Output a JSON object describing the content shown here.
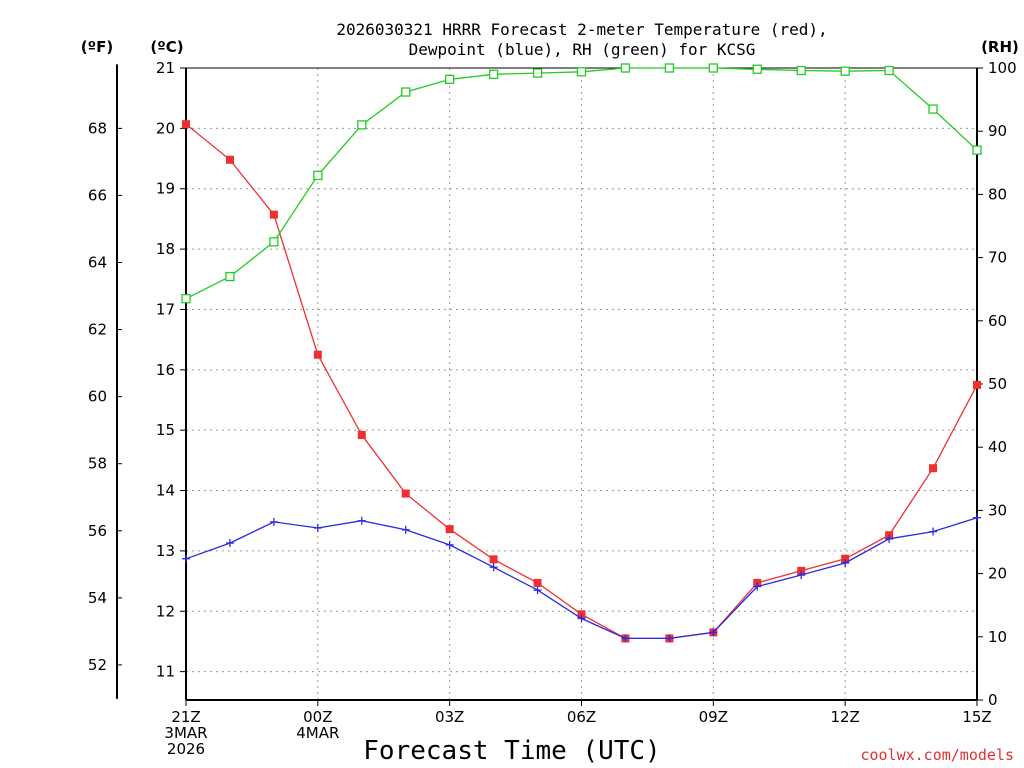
{
  "chart_data": {
    "type": "line",
    "title_line1": "2026030321 HRRR Forecast 2-meter Temperature (red),",
    "title_line2": "Dewpoint (blue), RH (green) for KCSG",
    "xlabel": "Forecast Time (UTC)",
    "watermark": "coolwx.com/models",
    "unit_labels": {
      "fahrenheit": "(ºF)",
      "celsius": "(ºC)",
      "rh": "(RH)"
    },
    "x_hours": [
      0,
      1,
      2,
      3,
      4,
      5,
      6,
      7,
      8,
      9,
      10,
      11,
      12,
      13,
      14,
      15,
      16,
      17,
      18
    ],
    "xlim": [
      0,
      18
    ],
    "x_ticks": [
      {
        "hour": 0,
        "lines": [
          "21Z",
          "3MAR",
          "2026"
        ]
      },
      {
        "hour": 3,
        "lines": [
          "00Z",
          "4MAR"
        ]
      },
      {
        "hour": 6,
        "lines": [
          "03Z"
        ]
      },
      {
        "hour": 9,
        "lines": [
          "06Z"
        ]
      },
      {
        "hour": 12,
        "lines": [
          "09Z"
        ]
      },
      {
        "hour": 15,
        "lines": [
          "12Z"
        ]
      },
      {
        "hour": 18,
        "lines": [
          "15Z"
        ]
      }
    ],
    "celsius_axis": {
      "ylim": [
        10.53,
        21.0
      ],
      "ticks": [
        "11",
        "12",
        "13",
        "14",
        "15",
        "16",
        "17",
        "18",
        "19",
        "20",
        "21"
      ]
    },
    "fahrenheit_axis": {
      "ticks": [
        "52",
        "54",
        "56",
        "58",
        "60",
        "62",
        "64",
        "66",
        "68"
      ]
    },
    "rh_axis": {
      "ylim": [
        0,
        100
      ],
      "ticks": [
        "0",
        "10",
        "20",
        "30",
        "40",
        "50",
        "60",
        "70",
        "80",
        "90",
        "100"
      ]
    },
    "series": [
      {
        "name": "Temperature",
        "axis": "celsius",
        "color": "#f03030",
        "marker": "filled-square",
        "values": [
          20.07,
          19.48,
          18.57,
          16.25,
          14.92,
          13.95,
          13.36,
          12.86,
          12.47,
          11.95,
          11.55,
          11.55,
          11.65,
          12.47,
          12.67,
          12.87,
          13.26,
          14.37,
          15.75
        ]
      },
      {
        "name": "Dewpoint",
        "axis": "celsius",
        "color": "#2a2ae0",
        "marker": "plus",
        "values": [
          12.87,
          13.13,
          13.48,
          13.38,
          13.5,
          13.35,
          13.1,
          12.73,
          12.35,
          11.88,
          11.55,
          11.55,
          11.65,
          12.41,
          12.6,
          12.8,
          13.2,
          13.32,
          13.55
        ]
      },
      {
        "name": "RH",
        "axis": "rh",
        "color": "#22cc22",
        "marker": "open-square",
        "values": [
          63.5,
          67,
          72.5,
          83,
          91,
          96.2,
          98.2,
          99,
          99.2,
          99.4,
          100,
          100,
          100,
          99.8,
          99.6,
          99.5,
          99.6,
          93.5,
          87
        ]
      }
    ]
  }
}
